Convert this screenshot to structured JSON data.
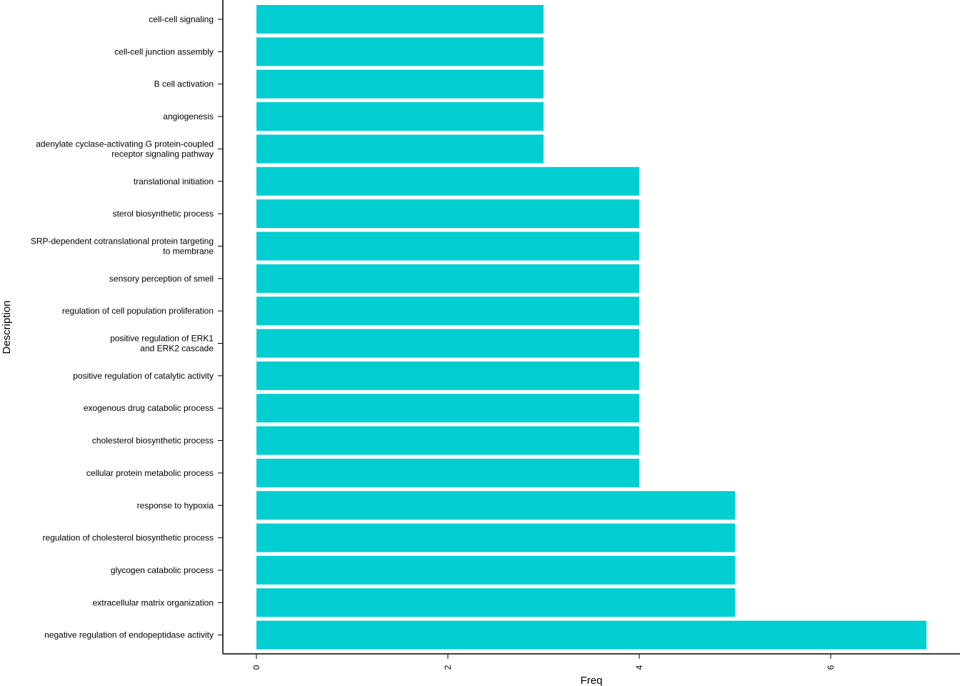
{
  "chart_data": {
    "type": "bar",
    "orientation": "horizontal",
    "xlabel": "Freq",
    "ylabel": "Description",
    "xlim": [
      0,
      7
    ],
    "xticks": [
      0,
      2,
      4,
      6
    ],
    "grid": false,
    "legend": "none",
    "bar_color": "#00CED1",
    "categories": [
      "cell-cell signaling",
      "cell-cell junction assembly",
      "B cell activation",
      "angiogenesis",
      "adenylate cyclase-activating G protein-coupled\nreceptor signaling pathway",
      "translational initiation",
      "sterol biosynthetic process",
      "SRP-dependent cotranslational protein targeting\nto membrane",
      "sensory perception of smell",
      "regulation of cell population proliferation",
      "positive regulation of ERK1\nand ERK2 cascade",
      "positive regulation of catalytic activity",
      "exogenous drug catabolic process",
      "cholesterol biosynthetic process",
      "cellular protein metabolic process",
      "response to hypoxia",
      "regulation of cholesterol biosynthetic process",
      "glycogen catabolic process",
      "extracellular matrix organization",
      "negative regulation of endopeptidase activity"
    ],
    "values": [
      3,
      3,
      3,
      3,
      3,
      4,
      4,
      4,
      4,
      4,
      4,
      4,
      4,
      4,
      4,
      5,
      5,
      5,
      5,
      7
    ]
  }
}
